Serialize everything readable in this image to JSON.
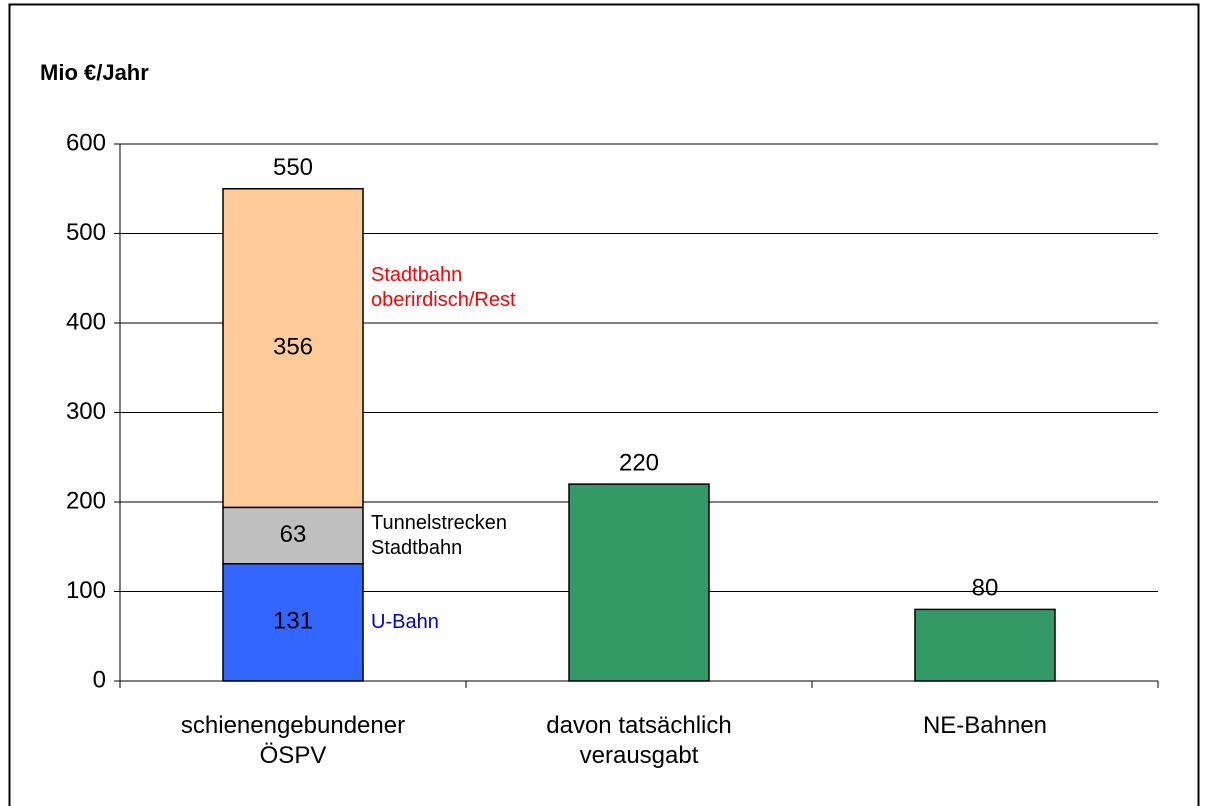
{
  "chart_data": {
    "type": "stacked-bar",
    "y_axis_label": "Mio €/Jahr",
    "categories": [
      "schienengebundener\nÖSPV",
      "davon tatsächlich\nverausgabt",
      "NE-Bahnen"
    ],
    "series": [
      {
        "name": "U-Bahn",
        "color": "#3366ff",
        "label_color": "#0000cc",
        "values": [
          131,
          null,
          null
        ]
      },
      {
        "name": "Tunnelstrecken\nStadtbahn",
        "color": "#c0c0c0",
        "label_color": "#000000",
        "values": [
          63,
          null,
          null
        ]
      },
      {
        "name": "Stadtbahn\noberirdisch/Rest",
        "color": "#ffcc99",
        "label_color": "#ff0000",
        "values": [
          356,
          null,
          null
        ]
      },
      {
        "color": "#339966",
        "values": [
          null,
          220,
          80
        ]
      }
    ],
    "totals": [
      550,
      220,
      80
    ],
    "ylim": [
      0,
      600
    ],
    "yticks": [
      0,
      100,
      200,
      300,
      400,
      500,
      600
    ],
    "grid": true
  }
}
